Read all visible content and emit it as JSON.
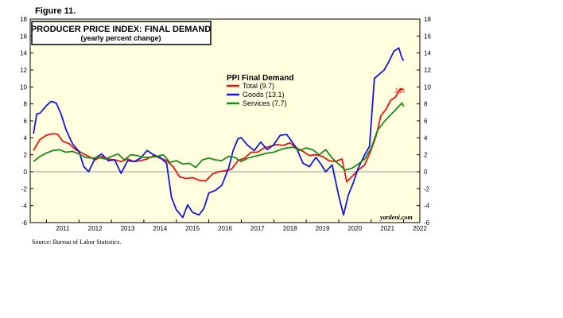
{
  "figure_label": "Figure 11.",
  "source": "Source: Bureau of Labor Statistics.",
  "watermark": "yardeni.com",
  "colors": {
    "background": "#ffffe0",
    "red": "#ee1111",
    "blue": "#1515dd",
    "green": "#1d8a1d"
  },
  "chart_data": {
    "type": "line",
    "title": "PRODUCER PRICE INDEX: FINAL DEMAND",
    "subtitle": "(yearly percent change)",
    "legend_title": "PPI Final Demand",
    "legend_position": "top-center",
    "annotation": "Jan",
    "ylim": [
      -6,
      18
    ],
    "yticks": [
      -6,
      -4,
      -2,
      0,
      2,
      4,
      6,
      8,
      10,
      12,
      14,
      16,
      18
    ],
    "xlim": [
      2010.5,
      2022.5
    ],
    "xtick_labels": [
      "2011",
      "2012",
      "2013",
      "2014",
      "2015",
      "2016",
      "2017",
      "2018",
      "2019",
      "2020",
      "2021",
      "2022"
    ],
    "grid": false,
    "series": [
      {
        "name": "Total (9.7)",
        "color": "red",
        "x": [
          2010.6,
          2010.8,
          2011.0,
          2011.2,
          2011.35,
          2011.5,
          2011.7,
          2011.9,
          2012.1,
          2012.3,
          2012.5,
          2012.7,
          2012.9,
          2013.1,
          2013.3,
          2013.5,
          2013.7,
          2013.9,
          2014.1,
          2014.3,
          2014.5,
          2014.7,
          2014.9,
          2015.1,
          2015.3,
          2015.5,
          2015.7,
          2015.9,
          2016.1,
          2016.3,
          2016.5,
          2016.7,
          2016.9,
          2017.1,
          2017.3,
          2017.5,
          2017.7,
          2017.9,
          2018.1,
          2018.3,
          2018.5,
          2018.7,
          2018.9,
          2019.1,
          2019.3,
          2019.5,
          2019.7,
          2019.9,
          2020.1,
          2020.25,
          2020.4,
          2020.6,
          2020.8,
          2021.0,
          2021.15,
          2021.3,
          2021.45,
          2021.6,
          2021.75,
          2021.9,
          2022.0
        ],
        "y": [
          2.5,
          3.8,
          4.3,
          4.5,
          4.4,
          3.6,
          3.3,
          2.6,
          2.2,
          1.8,
          1.4,
          1.8,
          1.5,
          1.4,
          1.2,
          1.5,
          1.2,
          1.3,
          1.5,
          1.9,
          1.6,
          1.3,
          0.6,
          -0.6,
          -0.8,
          -0.7,
          -1.0,
          -1.1,
          -0.3,
          0.0,
          0.1,
          0.3,
          1.3,
          1.6,
          2.3,
          2.3,
          2.8,
          3.0,
          3.2,
          3.1,
          3.4,
          2.8,
          2.4,
          1.9,
          2.0,
          1.8,
          1.3,
          1.2,
          1.5,
          -1.2,
          -0.6,
          0.2,
          0.8,
          2.6,
          4.2,
          6.6,
          7.3,
          8.4,
          8.8,
          9.8,
          9.7
        ]
      },
      {
        "name": "Goods (13.1)",
        "color": "blue",
        "x": [
          2010.6,
          2010.7,
          2010.8,
          2011.0,
          2011.15,
          2011.3,
          2011.45,
          2011.6,
          2011.8,
          2012.0,
          2012.15,
          2012.3,
          2012.5,
          2012.7,
          2012.9,
          2013.1,
          2013.3,
          2013.5,
          2013.7,
          2013.9,
          2014.1,
          2014.3,
          2014.5,
          2014.7,
          2014.85,
          2015.0,
          2015.2,
          2015.35,
          2015.5,
          2015.7,
          2015.85,
          2016.0,
          2016.2,
          2016.4,
          2016.6,
          2016.75,
          2016.9,
          2017.0,
          2017.2,
          2017.4,
          2017.6,
          2017.8,
          2018.0,
          2018.2,
          2018.4,
          2018.55,
          2018.7,
          2018.9,
          2019.1,
          2019.3,
          2019.45,
          2019.6,
          2019.8,
          2020.0,
          2020.15,
          2020.3,
          2020.45,
          2020.6,
          2020.8,
          2020.95,
          2021.1,
          2021.25,
          2021.4,
          2021.55,
          2021.7,
          2021.85,
          2021.95,
          2022.0
        ],
        "y": [
          4.5,
          6.8,
          6.9,
          7.8,
          8.3,
          8.1,
          6.8,
          5.0,
          3.3,
          2.4,
          0.6,
          0.0,
          1.6,
          2.1,
          1.3,
          1.4,
          -0.2,
          1.3,
          1.2,
          1.6,
          2.5,
          2.0,
          1.7,
          1.0,
          -3.0,
          -4.5,
          -5.4,
          -3.9,
          -4.8,
          -5.1,
          -4.3,
          -2.5,
          -2.2,
          -1.6,
          0.3,
          2.5,
          3.9,
          4.0,
          3.1,
          2.5,
          3.5,
          2.6,
          3.2,
          4.3,
          4.4,
          3.6,
          2.8,
          1.0,
          0.6,
          1.7,
          0.9,
          0.0,
          0.8,
          -2.8,
          -5.1,
          -2.7,
          -1.3,
          0.4,
          2.0,
          3.0,
          11.0,
          11.5,
          12.0,
          13.0,
          14.2,
          14.6,
          13.4,
          13.1
        ]
      },
      {
        "name": "Services (7.7)",
        "color": "green",
        "x": [
          2010.6,
          2010.8,
          2011.0,
          2011.2,
          2011.4,
          2011.6,
          2011.8,
          2012.0,
          2012.2,
          2012.4,
          2012.6,
          2012.8,
          2013.0,
          2013.2,
          2013.4,
          2013.6,
          2013.8,
          2014.0,
          2014.2,
          2014.4,
          2014.6,
          2014.8,
          2015.0,
          2015.2,
          2015.4,
          2015.6,
          2015.8,
          2016.0,
          2016.2,
          2016.4,
          2016.6,
          2016.8,
          2017.0,
          2017.2,
          2017.4,
          2017.6,
          2017.8,
          2018.0,
          2018.2,
          2018.4,
          2018.6,
          2018.8,
          2019.0,
          2019.2,
          2019.4,
          2019.6,
          2019.8,
          2020.0,
          2020.2,
          2020.4,
          2020.6,
          2020.8,
          2021.0,
          2021.2,
          2021.4,
          2021.6,
          2021.8,
          2021.95,
          2022.0
        ],
        "y": [
          1.2,
          1.8,
          2.2,
          2.5,
          2.6,
          2.3,
          2.4,
          2.1,
          1.7,
          1.6,
          1.7,
          1.5,
          1.8,
          2.1,
          1.4,
          2.0,
          1.9,
          1.7,
          1.7,
          1.8,
          2.0,
          1.1,
          1.3,
          0.9,
          1.0,
          0.5,
          1.4,
          1.6,
          1.4,
          1.3,
          1.8,
          1.7,
          1.2,
          1.6,
          1.8,
          2.0,
          2.2,
          2.3,
          2.6,
          2.8,
          2.9,
          2.5,
          2.8,
          2.6,
          2.0,
          2.6,
          1.6,
          0.9,
          0.2,
          0.4,
          0.9,
          1.5,
          2.8,
          4.9,
          5.9,
          6.7,
          7.5,
          8.1,
          7.7
        ]
      }
    ]
  }
}
